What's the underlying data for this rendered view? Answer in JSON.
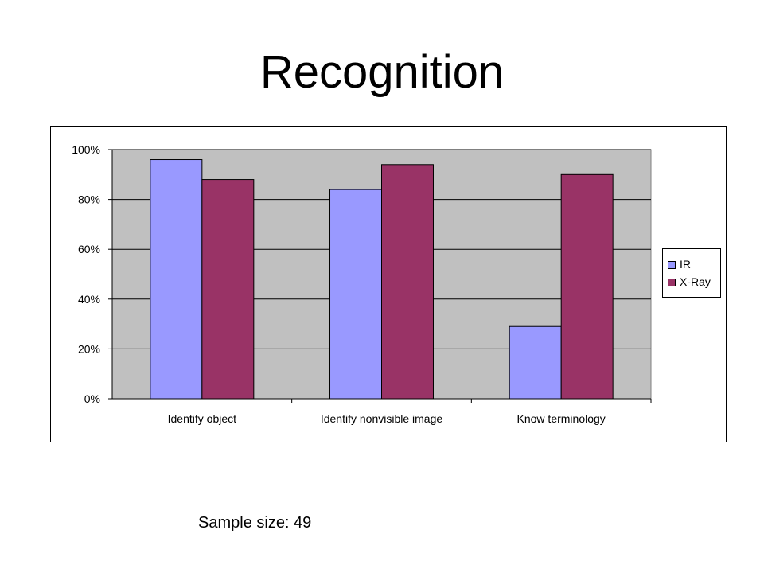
{
  "slide": {
    "title": "Recognition",
    "footnote": "Sample size: 49"
  },
  "chart_data": {
    "type": "bar",
    "categories": [
      "Identify object",
      "Identify nonvisible image",
      "Know terminology"
    ],
    "series": [
      {
        "name": "IR",
        "values": [
          0.96,
          0.84,
          0.29
        ],
        "color": "#9999ff"
      },
      {
        "name": "X-Ray",
        "values": [
          0.88,
          0.94,
          0.9
        ],
        "color": "#993366"
      }
    ],
    "yticks": [
      "0%",
      "20%",
      "40%",
      "60%",
      "80%",
      "100%"
    ],
    "ylim": [
      0,
      1
    ],
    "grid": true,
    "plot_background": "#c0c0c0",
    "legend_position": "right"
  }
}
